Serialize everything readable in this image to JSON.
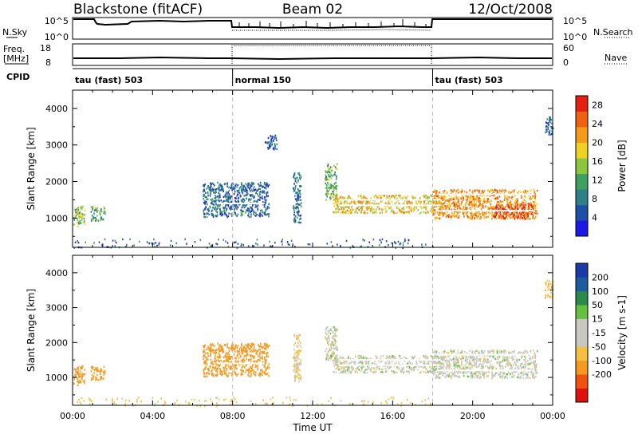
{
  "header": {
    "station": "Blackstone (fitACF)",
    "beam": "Beam 02",
    "date": "12/Oct/2008"
  },
  "top_strips": {
    "nsky_label": "N.Sky",
    "nsky_ticks": [
      "10^5",
      "10^0"
    ],
    "freq_label_1": "Freq.",
    "freq_label_2": "[MHz]",
    "freq_ticks": [
      "18",
      "8"
    ],
    "nsearch_label": "N.Search",
    "nsearch_ticks": [
      "10^5",
      "10^0"
    ],
    "nave_label": "Nave",
    "nave_ticks": [
      "60",
      "0"
    ],
    "cpid_label": "CPID"
  },
  "cpid_segments": [
    {
      "start": 0,
      "end": 8,
      "label": "tau (fast) 503"
    },
    {
      "start": 8,
      "end": 18,
      "label": "normal 150"
    },
    {
      "start": 18,
      "end": 24,
      "label": "tau (fast) 503"
    }
  ],
  "colors": {
    "power_scale": [
      "#1a1ae6",
      "#1e4fa8",
      "#2f7f8a",
      "#3f9f5f",
      "#8cc63f",
      "#f0d020",
      "#f59a1a",
      "#f06010",
      "#e52010"
    ],
    "velocity_scale": [
      "#e01010",
      "#f05010",
      "#f59a20",
      "#f5c040",
      "#c8c8c0",
      "#c8c8c0",
      "#66c040",
      "#2a8a4a",
      "#1e5aa0",
      "#1a3aa8"
    ]
  },
  "chart_data": [
    {
      "type": "heatmap",
      "title": "Power",
      "xlabel": "",
      "ylabel": "Slant Range [km]",
      "xlim": [
        0,
        24
      ],
      "ylim": [
        200,
        4500
      ],
      "yticks": [
        1000,
        2000,
        3000,
        4000
      ],
      "colorbar_label": "Power [dB]",
      "colorbar_ticks": [
        4,
        8,
        12,
        16,
        20,
        24,
        28
      ],
      "colorbar_range": [
        0,
        30
      ],
      "echo_regions": [
        {
          "t0": 0.0,
          "t1": 0.6,
          "r0": 800,
          "r1": 1350,
          "value": 14
        },
        {
          "t0": 0.9,
          "t1": 1.6,
          "r0": 950,
          "r1": 1350,
          "value": 12
        },
        {
          "t0": 6.5,
          "t1": 9.8,
          "r0": 1050,
          "r1": 2000,
          "value": 7
        },
        {
          "t0": 9.6,
          "t1": 10.2,
          "r0": 2900,
          "r1": 3300,
          "value": 5
        },
        {
          "t0": 11.0,
          "t1": 11.4,
          "r0": 900,
          "r1": 2300,
          "value": 8
        },
        {
          "t0": 12.6,
          "t1": 13.2,
          "r0": 1500,
          "r1": 2500,
          "value": 13
        },
        {
          "t0": 13.0,
          "t1": 18.5,
          "r0": 1150,
          "r1": 1650,
          "value": 19
        },
        {
          "t0": 18.0,
          "t1": 23.2,
          "r0": 1000,
          "r1": 1800,
          "value": 22
        },
        {
          "t0": 21.0,
          "t1": 23.0,
          "r0": 1000,
          "r1": 1400,
          "value": 27
        },
        {
          "t0": 23.6,
          "t1": 24.0,
          "r0": 3300,
          "r1": 3800,
          "value": 6
        },
        {
          "t0": 0.0,
          "t1": 18.0,
          "r0": 200,
          "r1": 450,
          "value": 6
        }
      ]
    },
    {
      "type": "heatmap",
      "title": "Velocity",
      "xlabel": "Time UT",
      "ylabel": "Slant Range [km]",
      "xlim": [
        0,
        24
      ],
      "ylim": [
        200,
        4500
      ],
      "xtick_labels": [
        "00:00",
        "04:00",
        "08:00",
        "12:00",
        "16:00",
        "20:00",
        "00:00"
      ],
      "yticks": [
        1000,
        2000,
        3000,
        4000
      ],
      "colorbar_label": "Velocity [m s-1]",
      "colorbar_ticks": [
        "200",
        "100",
        "50",
        "15",
        "-15",
        "-50",
        "-100",
        "-200"
      ],
      "echo_regions": [
        {
          "t0": 0.0,
          "t1": 0.6,
          "r0": 800,
          "r1": 1350,
          "value": -70
        },
        {
          "t0": 0.9,
          "t1": 1.6,
          "r0": 950,
          "r1": 1350,
          "value": -80
        },
        {
          "t0": 6.5,
          "t1": 9.8,
          "r0": 1050,
          "r1": 2000,
          "value": -80
        },
        {
          "t0": 11.0,
          "t1": 11.4,
          "r0": 900,
          "r1": 2300,
          "value": -20
        },
        {
          "t0": 12.6,
          "t1": 13.2,
          "r0": 1500,
          "r1": 2500,
          "value": 0
        },
        {
          "t0": 13.0,
          "t1": 18.5,
          "r0": 1150,
          "r1": 1650,
          "value": 0
        },
        {
          "t0": 18.0,
          "t1": 23.2,
          "r0": 1000,
          "r1": 1800,
          "value": 0
        },
        {
          "t0": 23.6,
          "t1": 24.0,
          "r0": 3300,
          "r1": 3800,
          "value": -40
        },
        {
          "t0": 0.0,
          "t1": 18.0,
          "r0": 200,
          "r1": 450,
          "value": -30
        }
      ]
    }
  ]
}
